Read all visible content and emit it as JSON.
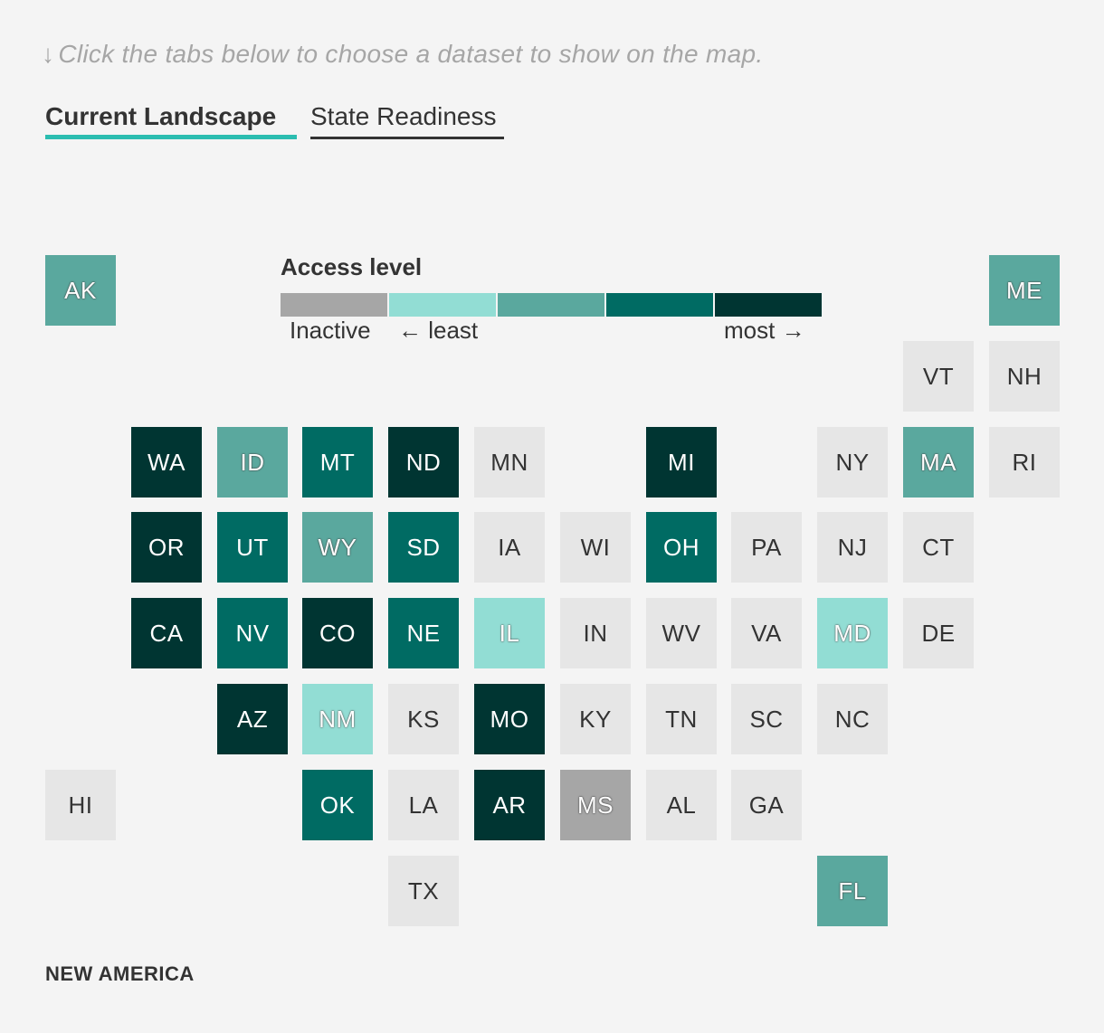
{
  "instruction": {
    "arrow": "↓",
    "text": "Click the tabs below to choose a dataset to show on the map."
  },
  "tabs": [
    {
      "label": "Current Landscape",
      "active": true
    },
    {
      "label": "State Readiness",
      "active": false
    }
  ],
  "legend": {
    "title": "Access level",
    "inactive_label": "Inactive",
    "least_label": "← least",
    "most_label": "most →",
    "colors": {
      "inactive": "#a6a6a6",
      "level1": "#92ddd4",
      "level2": "#5aa89e",
      "level3": "#006b63",
      "level4": "#003532",
      "no_data": "#e6e6e6"
    }
  },
  "chart_data": {
    "type": "heatmap",
    "title": "Access level",
    "states": [
      {
        "abbr": "AK",
        "col": 0,
        "row": 0,
        "level": "level2"
      },
      {
        "abbr": "ME",
        "col": 11,
        "row": 0,
        "level": "level2"
      },
      {
        "abbr": "VT",
        "col": 10,
        "row": 1,
        "level": "no_data"
      },
      {
        "abbr": "NH",
        "col": 11,
        "row": 1,
        "level": "no_data"
      },
      {
        "abbr": "WA",
        "col": 1,
        "row": 2,
        "level": "level4"
      },
      {
        "abbr": "ID",
        "col": 2,
        "row": 2,
        "level": "level2"
      },
      {
        "abbr": "MT",
        "col": 3,
        "row": 2,
        "level": "level3"
      },
      {
        "abbr": "ND",
        "col": 4,
        "row": 2,
        "level": "level4"
      },
      {
        "abbr": "MN",
        "col": 5,
        "row": 2,
        "level": "no_data"
      },
      {
        "abbr": "MI",
        "col": 7,
        "row": 2,
        "level": "level4"
      },
      {
        "abbr": "NY",
        "col": 9,
        "row": 2,
        "level": "no_data"
      },
      {
        "abbr": "MA",
        "col": 10,
        "row": 2,
        "level": "level2"
      },
      {
        "abbr": "RI",
        "col": 11,
        "row": 2,
        "level": "no_data"
      },
      {
        "abbr": "OR",
        "col": 1,
        "row": 3,
        "level": "level4"
      },
      {
        "abbr": "UT",
        "col": 2,
        "row": 3,
        "level": "level3"
      },
      {
        "abbr": "WY",
        "col": 3,
        "row": 3,
        "level": "level2"
      },
      {
        "abbr": "SD",
        "col": 4,
        "row": 3,
        "level": "level3"
      },
      {
        "abbr": "IA",
        "col": 5,
        "row": 3,
        "level": "no_data"
      },
      {
        "abbr": "WI",
        "col": 6,
        "row": 3,
        "level": "no_data"
      },
      {
        "abbr": "OH",
        "col": 7,
        "row": 3,
        "level": "level3"
      },
      {
        "abbr": "PA",
        "col": 8,
        "row": 3,
        "level": "no_data"
      },
      {
        "abbr": "NJ",
        "col": 9,
        "row": 3,
        "level": "no_data"
      },
      {
        "abbr": "CT",
        "col": 10,
        "row": 3,
        "level": "no_data"
      },
      {
        "abbr": "CA",
        "col": 1,
        "row": 4,
        "level": "level4"
      },
      {
        "abbr": "NV",
        "col": 2,
        "row": 4,
        "level": "level3"
      },
      {
        "abbr": "CO",
        "col": 3,
        "row": 4,
        "level": "level4"
      },
      {
        "abbr": "NE",
        "col": 4,
        "row": 4,
        "level": "level3"
      },
      {
        "abbr": "IL",
        "col": 5,
        "row": 4,
        "level": "level1"
      },
      {
        "abbr": "IN",
        "col": 6,
        "row": 4,
        "level": "no_data"
      },
      {
        "abbr": "WV",
        "col": 7,
        "row": 4,
        "level": "no_data"
      },
      {
        "abbr": "VA",
        "col": 8,
        "row": 4,
        "level": "no_data"
      },
      {
        "abbr": "MD",
        "col": 9,
        "row": 4,
        "level": "level1"
      },
      {
        "abbr": "DE",
        "col": 10,
        "row": 4,
        "level": "no_data"
      },
      {
        "abbr": "AZ",
        "col": 2,
        "row": 5,
        "level": "level4"
      },
      {
        "abbr": "NM",
        "col": 3,
        "row": 5,
        "level": "level1"
      },
      {
        "abbr": "KS",
        "col": 4,
        "row": 5,
        "level": "no_data"
      },
      {
        "abbr": "MO",
        "col": 5,
        "row": 5,
        "level": "level4"
      },
      {
        "abbr": "KY",
        "col": 6,
        "row": 5,
        "level": "no_data"
      },
      {
        "abbr": "TN",
        "col": 7,
        "row": 5,
        "level": "no_data"
      },
      {
        "abbr": "SC",
        "col": 8,
        "row": 5,
        "level": "no_data"
      },
      {
        "abbr": "NC",
        "col": 9,
        "row": 5,
        "level": "no_data"
      },
      {
        "abbr": "HI",
        "col": 0,
        "row": 6,
        "level": "no_data"
      },
      {
        "abbr": "OK",
        "col": 3,
        "row": 6,
        "level": "level3"
      },
      {
        "abbr": "LA",
        "col": 4,
        "row": 6,
        "level": "no_data"
      },
      {
        "abbr": "AR",
        "col": 5,
        "row": 6,
        "level": "level4"
      },
      {
        "abbr": "MS",
        "col": 6,
        "row": 6,
        "level": "inactive"
      },
      {
        "abbr": "AL",
        "col": 7,
        "row": 6,
        "level": "no_data"
      },
      {
        "abbr": "GA",
        "col": 8,
        "row": 6,
        "level": "no_data"
      },
      {
        "abbr": "TX",
        "col": 4,
        "row": 7,
        "level": "no_data"
      },
      {
        "abbr": "FL",
        "col": 9,
        "row": 7,
        "level": "level2"
      }
    ]
  },
  "credit": "NEW AMERICA"
}
